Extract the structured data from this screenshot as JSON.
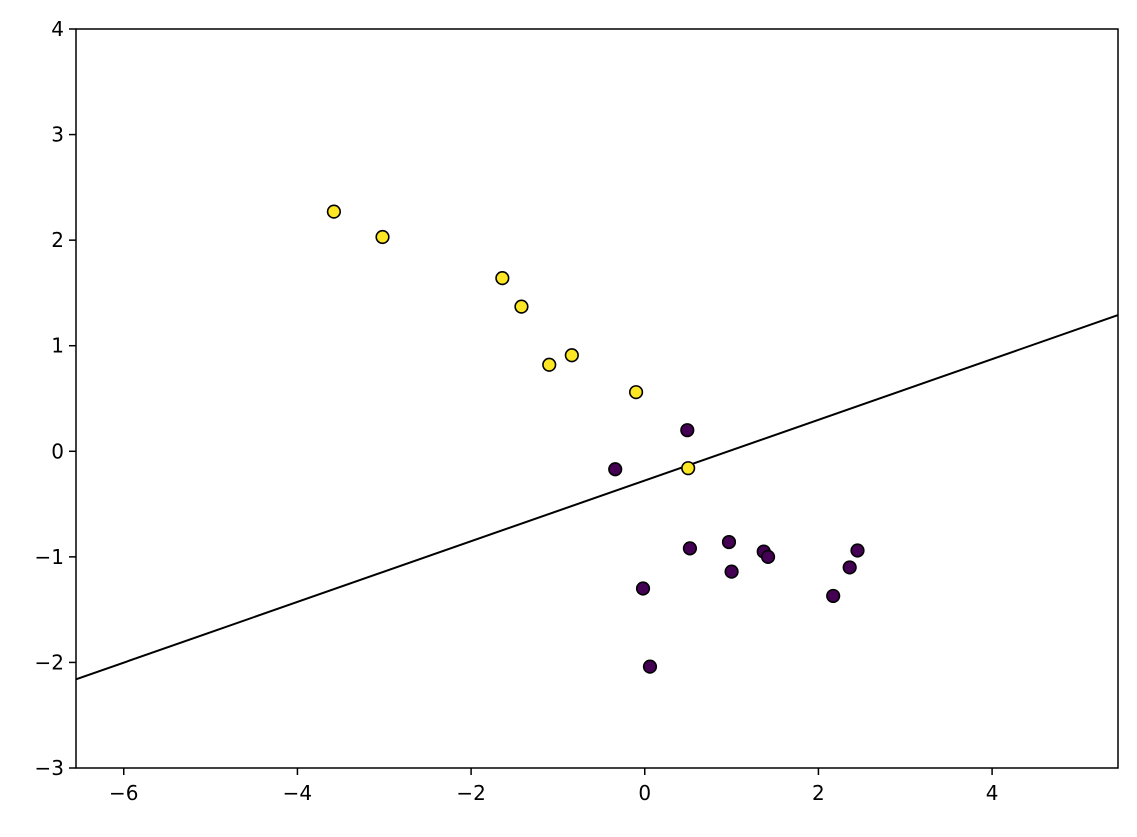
{
  "chart_data": {
    "type": "scatter",
    "title": "",
    "xlabel": "",
    "ylabel": "",
    "xlim": [
      -6.55,
      5.45
    ],
    "ylim": [
      -3,
      4
    ],
    "grid": false,
    "legend": "none",
    "x_ticks": [
      -6,
      -4,
      -2,
      0,
      2,
      4
    ],
    "x_tick_labels": [
      "−6",
      "−4",
      "−2",
      "0",
      "2",
      "4"
    ],
    "y_ticks": [
      -3,
      -2,
      -1,
      0,
      1,
      2,
      3,
      4
    ],
    "y_tick_labels": [
      "−3",
      "−2",
      "−1",
      "0",
      "1",
      "2",
      "3",
      "4"
    ],
    "colors": {
      "class_1": "#fde725",
      "class_0": "#440154",
      "edge": "#000000",
      "line": "#000000"
    },
    "series": [
      {
        "class": 1,
        "color": "#fde725",
        "points": [
          [
            -3.58,
            2.27
          ],
          [
            -3.02,
            2.03
          ],
          [
            -1.64,
            1.64
          ],
          [
            -1.42,
            1.37
          ],
          [
            -1.1,
            0.82
          ],
          [
            -0.84,
            0.91
          ],
          [
            -0.1,
            0.56
          ],
          [
            0.5,
            -0.16
          ]
        ]
      },
      {
        "class": 0,
        "color": "#440154",
        "points": [
          [
            0.49,
            0.2
          ],
          [
            -0.34,
            -0.17
          ],
          [
            0.52,
            -0.92
          ],
          [
            0.97,
            -0.86
          ],
          [
            1.37,
            -0.95
          ],
          [
            1.42,
            -1.0
          ],
          [
            1.0,
            -1.14
          ],
          [
            2.45,
            -0.94
          ],
          [
            2.36,
            -1.1
          ],
          [
            2.17,
            -1.37
          ],
          [
            -0.02,
            -1.3
          ],
          [
            0.06,
            -2.04
          ]
        ]
      }
    ],
    "line": {
      "x": [
        -6.55,
        5.45
      ],
      "y": [
        -2.16,
        1.29
      ]
    }
  }
}
